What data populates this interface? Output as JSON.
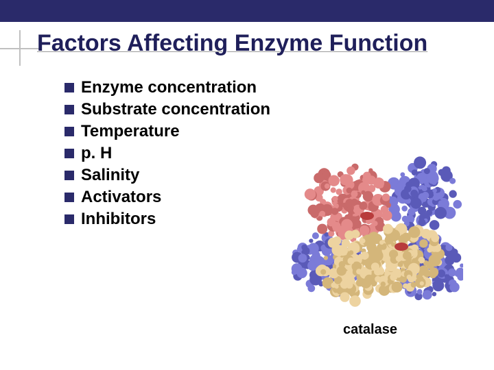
{
  "title": {
    "text": "Factors Affecting Enzyme Function",
    "color": "#1f1f5a",
    "fontsize": 34
  },
  "top_bar": {
    "color": "#2a2a6a",
    "height": 32
  },
  "bullets": {
    "marker_color": "#2a2a6a",
    "text_color": "#000000",
    "fontsize": 24,
    "items": [
      "Enzyme concentration",
      "Substrate concentration",
      "Temperature",
      "p. H",
      "Salinity",
      "Activators",
      "Inhibitors"
    ]
  },
  "image": {
    "caption": "catalase",
    "caption_color": "#000000",
    "caption_fontsize": 20,
    "colors": {
      "purple": "#7b7bd8",
      "purple_dark": "#5a5ab8",
      "coral": "#e48a8a",
      "coral_dark": "#c96a6a",
      "tan": "#edd3a0",
      "tan_dark": "#d4b67a",
      "heme": "#b83c3c"
    }
  }
}
